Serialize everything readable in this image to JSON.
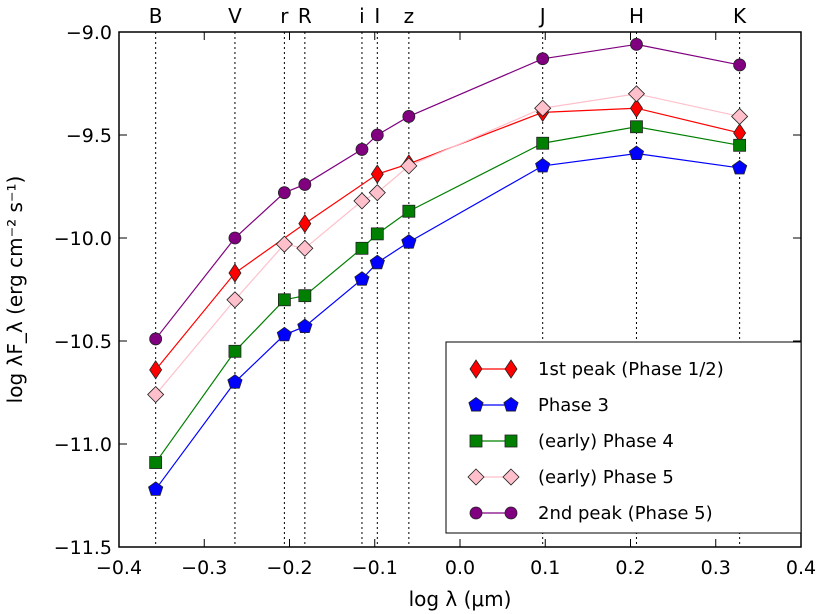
{
  "chart_data": {
    "type": "line",
    "title": "",
    "xlabel": "log λ (μm)",
    "ylabel": "log λF_λ (erg cm⁻² s⁻¹)",
    "xlim": [
      -0.4,
      0.4
    ],
    "ylim": [
      -11.5,
      -9.0
    ],
    "xticks": [
      -0.4,
      -0.3,
      -0.2,
      -0.1,
      0.0,
      0.1,
      0.2,
      0.3,
      0.4
    ],
    "xtick_labels": [
      "−0.4",
      "−0.3",
      "−0.2",
      "−0.1",
      "0.0",
      "0.1",
      "0.2",
      "0.3",
      "0.4"
    ],
    "yticks": [
      -11.5,
      -11.0,
      -10.5,
      -10.0,
      -9.5,
      -9.0
    ],
    "ytick_labels": [
      "−11.5",
      "−11.0",
      "−10.5",
      "−10.0",
      "−9.5",
      "−9.0"
    ],
    "grid": false,
    "legend_position": "bottom-right",
    "bands": [
      {
        "name": "B",
        "x": -0.357
      },
      {
        "name": "V",
        "x": -0.264
      },
      {
        "name": "r",
        "x": -0.206
      },
      {
        "name": "R",
        "x": -0.182
      },
      {
        "name": "i",
        "x": -0.115
      },
      {
        "name": "I",
        "x": -0.097
      },
      {
        "name": "z",
        "x": -0.06
      },
      {
        "name": "J",
        "x": 0.097
      },
      {
        "name": "H",
        "x": 0.207
      },
      {
        "name": "K",
        "x": 0.328
      }
    ],
    "series": [
      {
        "name": "1st peak (Phase 1/2)",
        "color": "#ff0000",
        "marker": "thin_diamond",
        "marker_fill": "#ff0000",
        "points": [
          {
            "x": -0.357,
            "y": -10.64
          },
          {
            "x": -0.264,
            "y": -10.17
          },
          {
            "x": -0.182,
            "y": -9.93
          },
          {
            "x": -0.097,
            "y": -9.69
          },
          {
            "x": -0.06,
            "y": -9.64
          },
          {
            "x": 0.097,
            "y": -9.39
          },
          {
            "x": 0.207,
            "y": -9.37
          },
          {
            "x": 0.328,
            "y": -9.49
          }
        ]
      },
      {
        "name": "Phase 3",
        "color": "#0000ff",
        "marker": "pentagon",
        "marker_fill": "#0000ff",
        "points": [
          {
            "x": -0.357,
            "y": -11.22
          },
          {
            "x": -0.264,
            "y": -10.7
          },
          {
            "x": -0.206,
            "y": -10.47
          },
          {
            "x": -0.182,
            "y": -10.43
          },
          {
            "x": -0.115,
            "y": -10.2
          },
          {
            "x": -0.097,
            "y": -10.12
          },
          {
            "x": -0.06,
            "y": -10.02
          },
          {
            "x": 0.097,
            "y": -9.65
          },
          {
            "x": 0.207,
            "y": -9.59
          },
          {
            "x": 0.328,
            "y": -9.66
          }
        ]
      },
      {
        "name": "(early) Phase 4",
        "color": "#008000",
        "marker": "square",
        "marker_fill": "#008000",
        "points": [
          {
            "x": -0.357,
            "y": -11.09
          },
          {
            "x": -0.264,
            "y": -10.55
          },
          {
            "x": -0.206,
            "y": -10.3
          },
          {
            "x": -0.182,
            "y": -10.28
          },
          {
            "x": -0.115,
            "y": -10.05
          },
          {
            "x": -0.097,
            "y": -9.98
          },
          {
            "x": -0.06,
            "y": -9.87
          },
          {
            "x": 0.097,
            "y": -9.54
          },
          {
            "x": 0.207,
            "y": -9.46
          },
          {
            "x": 0.328,
            "y": -9.55
          }
        ]
      },
      {
        "name": "(early) Phase 5",
        "color": "#ffc0cb",
        "marker": "diamond",
        "marker_fill": "#ffc0cb",
        "points": [
          {
            "x": -0.357,
            "y": -10.76
          },
          {
            "x": -0.264,
            "y": -10.3
          },
          {
            "x": -0.206,
            "y": -10.03
          },
          {
            "x": -0.182,
            "y": -10.05
          },
          {
            "x": -0.115,
            "y": -9.82
          },
          {
            "x": -0.097,
            "y": -9.78
          },
          {
            "x": -0.06,
            "y": -9.65
          },
          {
            "x": 0.097,
            "y": -9.37
          },
          {
            "x": 0.207,
            "y": -9.3
          },
          {
            "x": 0.328,
            "y": -9.41
          }
        ]
      },
      {
        "name": "2nd peak (Phase 5)",
        "color": "#800080",
        "marker": "circle",
        "marker_fill": "#800080",
        "points": [
          {
            "x": -0.357,
            "y": -10.49
          },
          {
            "x": -0.264,
            "y": -10.0
          },
          {
            "x": -0.206,
            "y": -9.78
          },
          {
            "x": -0.182,
            "y": -9.74
          },
          {
            "x": -0.115,
            "y": -9.57
          },
          {
            "x": -0.097,
            "y": -9.5
          },
          {
            "x": -0.06,
            "y": -9.41
          },
          {
            "x": 0.097,
            "y": -9.13
          },
          {
            "x": 0.207,
            "y": -9.06
          },
          {
            "x": 0.328,
            "y": -9.16
          }
        ]
      }
    ]
  }
}
